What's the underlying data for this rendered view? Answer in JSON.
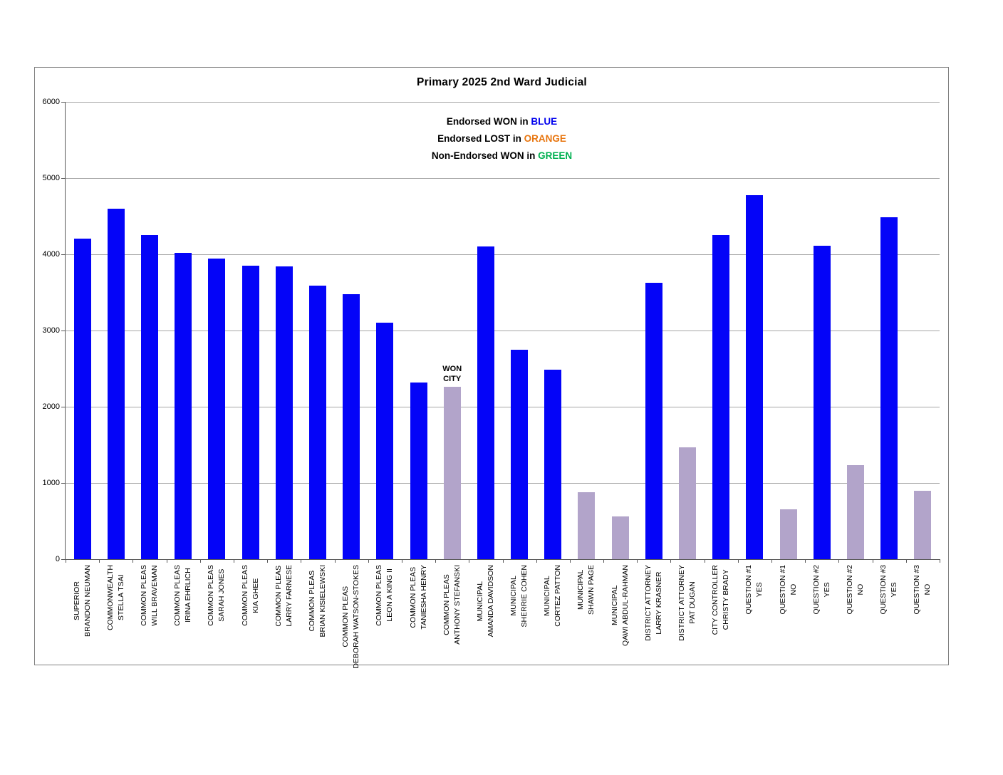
{
  "title": "Primary 2025 2nd Ward Judicial",
  "legend": [
    {
      "prefix": "Endorsed WON in ",
      "word": "BLUE",
      "color": "#0000EE"
    },
    {
      "prefix": "Endorsed LOST in ",
      "word": "ORANGE",
      "color": "#E8750E"
    },
    {
      "prefix": "Non-Endorsed WON in ",
      "word": "GREEN",
      "color": "#00B050"
    }
  ],
  "colors": {
    "endorsed_won_blue": "#0404F8",
    "other_lavender": "#B2A4CA",
    "gridline": "#A6A6A6",
    "axis": "#595959",
    "frame_border": "#808080"
  },
  "chart_data": {
    "type": "bar",
    "title": "Primary 2025 2nd Ward Judicial",
    "ylabel": "",
    "xlabel": "",
    "ylim": [
      0,
      6000
    ],
    "yticks": [
      0,
      1000,
      2000,
      3000,
      4000,
      5000,
      6000
    ],
    "grid": "horizontal",
    "legend_position": "top-center-text",
    "bars": [
      {
        "office": "SUPERIOR",
        "name": "BRANDON NEUMAN",
        "value": 4205,
        "color": "blue"
      },
      {
        "office": "COMMONWEALTH",
        "name": "STELLA TSAI",
        "value": 4595,
        "color": "blue"
      },
      {
        "office": "COMMON PLEAS",
        "name": "WILL BRAVEMAN",
        "value": 4255,
        "color": "blue"
      },
      {
        "office": "COMMON PLEAS",
        "name": "IRINA EHRLICH",
        "value": 4015,
        "color": "blue"
      },
      {
        "office": "COMMON PLEAS",
        "name": "SARAH JONES",
        "value": 3945,
        "color": "blue"
      },
      {
        "office": "COMMON PLEAS",
        "name": "KIA GHEE",
        "value": 3855,
        "color": "blue"
      },
      {
        "office": "COMMON PLEAS",
        "name": "LARRY FARNESE",
        "value": 3845,
        "color": "blue"
      },
      {
        "office": "COMMON PLEAS",
        "name": "BRIAN KISIELEWSKI",
        "value": 3590,
        "color": "blue"
      },
      {
        "office": "COMMON PLEAS",
        "name": "DEBORAH WATSON-STOKES",
        "value": 3480,
        "color": "blue"
      },
      {
        "office": "COMMON PLEAS",
        "name": "LEON A KING II",
        "value": 3105,
        "color": "blue"
      },
      {
        "office": "COMMON PLEAS",
        "name": "TANIESHA HENRY",
        "value": 2320,
        "color": "blue"
      },
      {
        "office": "COMMON PLEAS",
        "name": "ANTHONY STEFANSKI",
        "value": 2265,
        "color": "lavender",
        "note": [
          "WON",
          "CITY"
        ]
      },
      {
        "office": "MUNICIPAL",
        "name": "AMANDA DAVIDSON",
        "value": 4100,
        "color": "blue"
      },
      {
        "office": "MUNICIPAL",
        "name": "SHERRIE COHEN",
        "value": 2750,
        "color": "blue"
      },
      {
        "office": "MUNICIPAL",
        "name": "CORTEZ PATTON",
        "value": 2490,
        "color": "blue"
      },
      {
        "office": "MUNICIPAL",
        "name": "SHAWN PAGE",
        "value": 880,
        "color": "lavender"
      },
      {
        "office": "MUNICIPAL",
        "name": "QAWI ABDUL-RAHMAN",
        "value": 560,
        "color": "lavender"
      },
      {
        "office": "DISTRICT ATTORNEY",
        "name": "LARRY KRASNER",
        "value": 3630,
        "color": "blue"
      },
      {
        "office": "DISTRICT ATTORNEY",
        "name": "PAT DUGAN",
        "value": 1465,
        "color": "lavender"
      },
      {
        "office": "CITY CONTROLLER",
        "name": "CHRISTY BRADY",
        "value": 4255,
        "color": "blue"
      },
      {
        "office": "QUESTION #1",
        "name": "YES",
        "value": 4780,
        "color": "blue"
      },
      {
        "office": "QUESTION #1",
        "name": "NO",
        "value": 655,
        "color": "lavender"
      },
      {
        "office": "QUESTION #2",
        "name": "YES",
        "value": 4110,
        "color": "blue"
      },
      {
        "office": "QUESTION #2",
        "name": "NO",
        "value": 1235,
        "color": "lavender"
      },
      {
        "office": "QUESTION #3",
        "name": "YES",
        "value": 4490,
        "color": "blue"
      },
      {
        "office": "QUESTION #3",
        "name": "NO",
        "value": 895,
        "color": "lavender"
      }
    ]
  }
}
